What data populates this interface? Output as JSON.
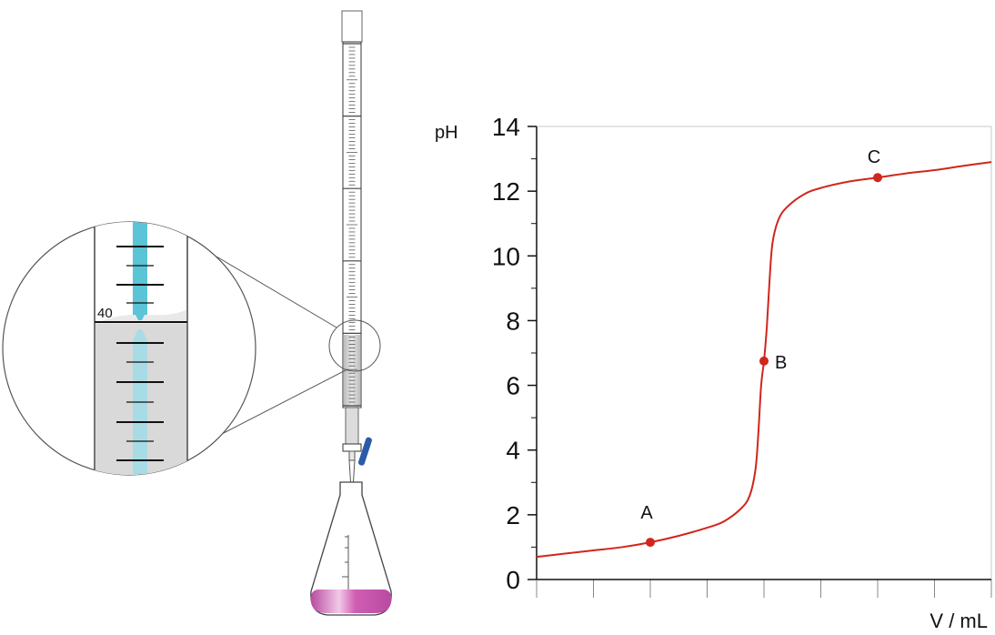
{
  "apparatus": {
    "zoom_reading": "40",
    "indicator_color": "#d05fb3",
    "burette_liquid_color": "#cfcfcf",
    "titrant_color": "#5bc4d6",
    "stopcock_color": "#2b5aa8"
  },
  "chart_data": {
    "type": "line",
    "xlabel": "V / mL",
    "ylabel": "pH",
    "ylim": [
      0,
      14
    ],
    "xlim": [
      0,
      8
    ],
    "yticks": [
      0,
      2,
      4,
      6,
      8,
      10,
      12,
      14
    ],
    "ytick_labels": [
      "0",
      "2",
      "4",
      "6",
      "8",
      "10",
      "12",
      "14"
    ],
    "xticks": [
      0,
      1,
      2,
      3,
      4,
      5,
      6,
      7,
      8
    ],
    "grid": false,
    "line_color": "#d0261c",
    "series": [
      {
        "x": [
          0,
          0.5,
          1.0,
          1.5,
          2.0,
          2.5,
          3.0,
          3.3,
          3.6,
          3.75,
          3.85,
          3.9,
          3.95,
          4.0,
          4.05,
          4.1,
          4.15,
          4.25,
          4.4,
          4.7,
          5.0,
          5.5,
          6.0,
          6.5,
          7.0,
          7.5,
          8.0
        ],
        "y": [
          0.7,
          0.8,
          0.9,
          1.0,
          1.15,
          1.35,
          1.6,
          1.8,
          2.2,
          2.6,
          3.4,
          4.5,
          6.0,
          6.75,
          7.8,
          9.3,
          10.4,
          11.1,
          11.5,
          11.9,
          12.1,
          12.3,
          12.42,
          12.55,
          12.65,
          12.78,
          12.9
        ]
      }
    ],
    "annotations": [
      {
        "label": "A",
        "x": 2.0,
        "y": 1.15
      },
      {
        "label": "B",
        "x": 4.0,
        "y": 6.75
      },
      {
        "label": "C",
        "x": 6.0,
        "y": 12.42
      }
    ]
  }
}
